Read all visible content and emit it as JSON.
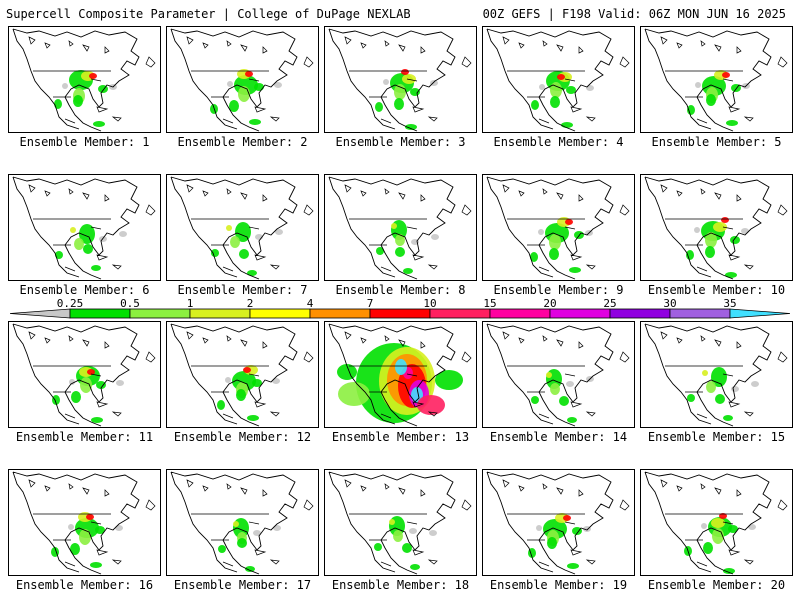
{
  "header": {
    "title": "Supercell Composite Parameter | College of DuPage NEXLAB",
    "run_info": "00Z GEFS | F198 Valid: 06Z MON JUN 16 2025"
  },
  "legend": {
    "ticks": [
      "0.25",
      "0.5",
      "1",
      "2",
      "4",
      "7",
      "10",
      "15",
      "20",
      "25",
      "30",
      "35"
    ],
    "colors": [
      "#c8c8c8",
      "#00e000",
      "#8cf040",
      "#d8f020",
      "#ffff00",
      "#ff9000",
      "#ff0000",
      "#ff2060",
      "#ff00a0",
      "#e000e0",
      "#9000e0",
      "#a060e0",
      "#40e0ff"
    ]
  },
  "panels": [
    {
      "label": "Ensemble Member: 1",
      "intensity": "moderate"
    },
    {
      "label": "Ensemble Member: 2",
      "intensity": "moderate"
    },
    {
      "label": "Ensemble Member: 3",
      "intensity": "moderate"
    },
    {
      "label": "Ensemble Member: 4",
      "intensity": "moderate"
    },
    {
      "label": "Ensemble Member: 5",
      "intensity": "moderate"
    },
    {
      "label": "Ensemble Member: 6",
      "intensity": "low"
    },
    {
      "label": "Ensemble Member: 7",
      "intensity": "low"
    },
    {
      "label": "Ensemble Member: 8",
      "intensity": "low"
    },
    {
      "label": "Ensemble Member: 9",
      "intensity": "moderate"
    },
    {
      "label": "Ensemble Member: 10",
      "intensity": "moderate"
    },
    {
      "label": "Ensemble Member: 11",
      "intensity": "moderate"
    },
    {
      "label": "Ensemble Member: 12",
      "intensity": "moderate"
    },
    {
      "label": "Ensemble Member: 13",
      "intensity": "extreme"
    },
    {
      "label": "Ensemble Member: 14",
      "intensity": "low"
    },
    {
      "label": "Ensemble Member: 15",
      "intensity": "low"
    },
    {
      "label": "Ensemble Member: 16",
      "intensity": "moderate"
    },
    {
      "label": "Ensemble Member: 17",
      "intensity": "low"
    },
    {
      "label": "Ensemble Member: 18",
      "intensity": "low"
    },
    {
      "label": "Ensemble Member: 19",
      "intensity": "moderate"
    },
    {
      "label": "Ensemble Member: 20",
      "intensity": "moderate"
    }
  ]
}
